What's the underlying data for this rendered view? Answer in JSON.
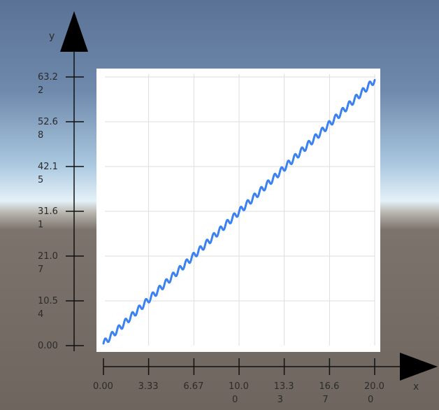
{
  "chart_data": {
    "type": "line",
    "title": "",
    "xlabel": "x",
    "ylabel": "y",
    "xlim": [
      0,
      20
    ],
    "ylim": [
      0,
      63.22
    ],
    "grid": true,
    "legend": "none",
    "x_ticks": [
      {
        "value": 0.0,
        "label": [
          "0.00"
        ]
      },
      {
        "value": 3.33,
        "label": [
          "3.33"
        ]
      },
      {
        "value": 6.67,
        "label": [
          "6.67"
        ]
      },
      {
        "value": 10.0,
        "label": [
          "10.0",
          "0"
        ]
      },
      {
        "value": 13.33,
        "label": [
          "13.3",
          "3"
        ]
      },
      {
        "value": 16.67,
        "label": [
          "16.6",
          "7"
        ]
      },
      {
        "value": 20.0,
        "label": [
          "20.0",
          "0"
        ]
      }
    ],
    "y_ticks": [
      {
        "value": 0.0,
        "label": [
          "0.00"
        ]
      },
      {
        "value": 10.54,
        "label": [
          "10.5",
          "4"
        ]
      },
      {
        "value": 21.07,
        "label": [
          "21.0",
          "7"
        ]
      },
      {
        "value": 31.61,
        "label": [
          "31.6",
          "1"
        ]
      },
      {
        "value": 42.15,
        "label": [
          "42.1",
          "5"
        ]
      },
      {
        "value": 52.68,
        "label": [
          "52.6",
          "8"
        ]
      },
      {
        "value": 63.22,
        "label": [
          "63.2",
          "2"
        ]
      }
    ],
    "series": [
      {
        "color": "#3b82f0",
        "function": "y = 3x + sin(2πx) with cycle period 0.5 as shown",
        "x": [
          0,
          1,
          2,
          3,
          4,
          5,
          6,
          7,
          8,
          9,
          10,
          11,
          12,
          13,
          14,
          15,
          16,
          17,
          18,
          19,
          20
        ],
        "values": [
          0.5,
          3.6,
          6.7,
          9.8,
          12.9,
          16.0,
          19.1,
          22.2,
          25.3,
          28.4,
          31.5,
          34.6,
          37.7,
          40.8,
          43.9,
          47.0,
          50.1,
          53.2,
          56.3,
          59.4,
          62.5
        ]
      }
    ]
  }
}
